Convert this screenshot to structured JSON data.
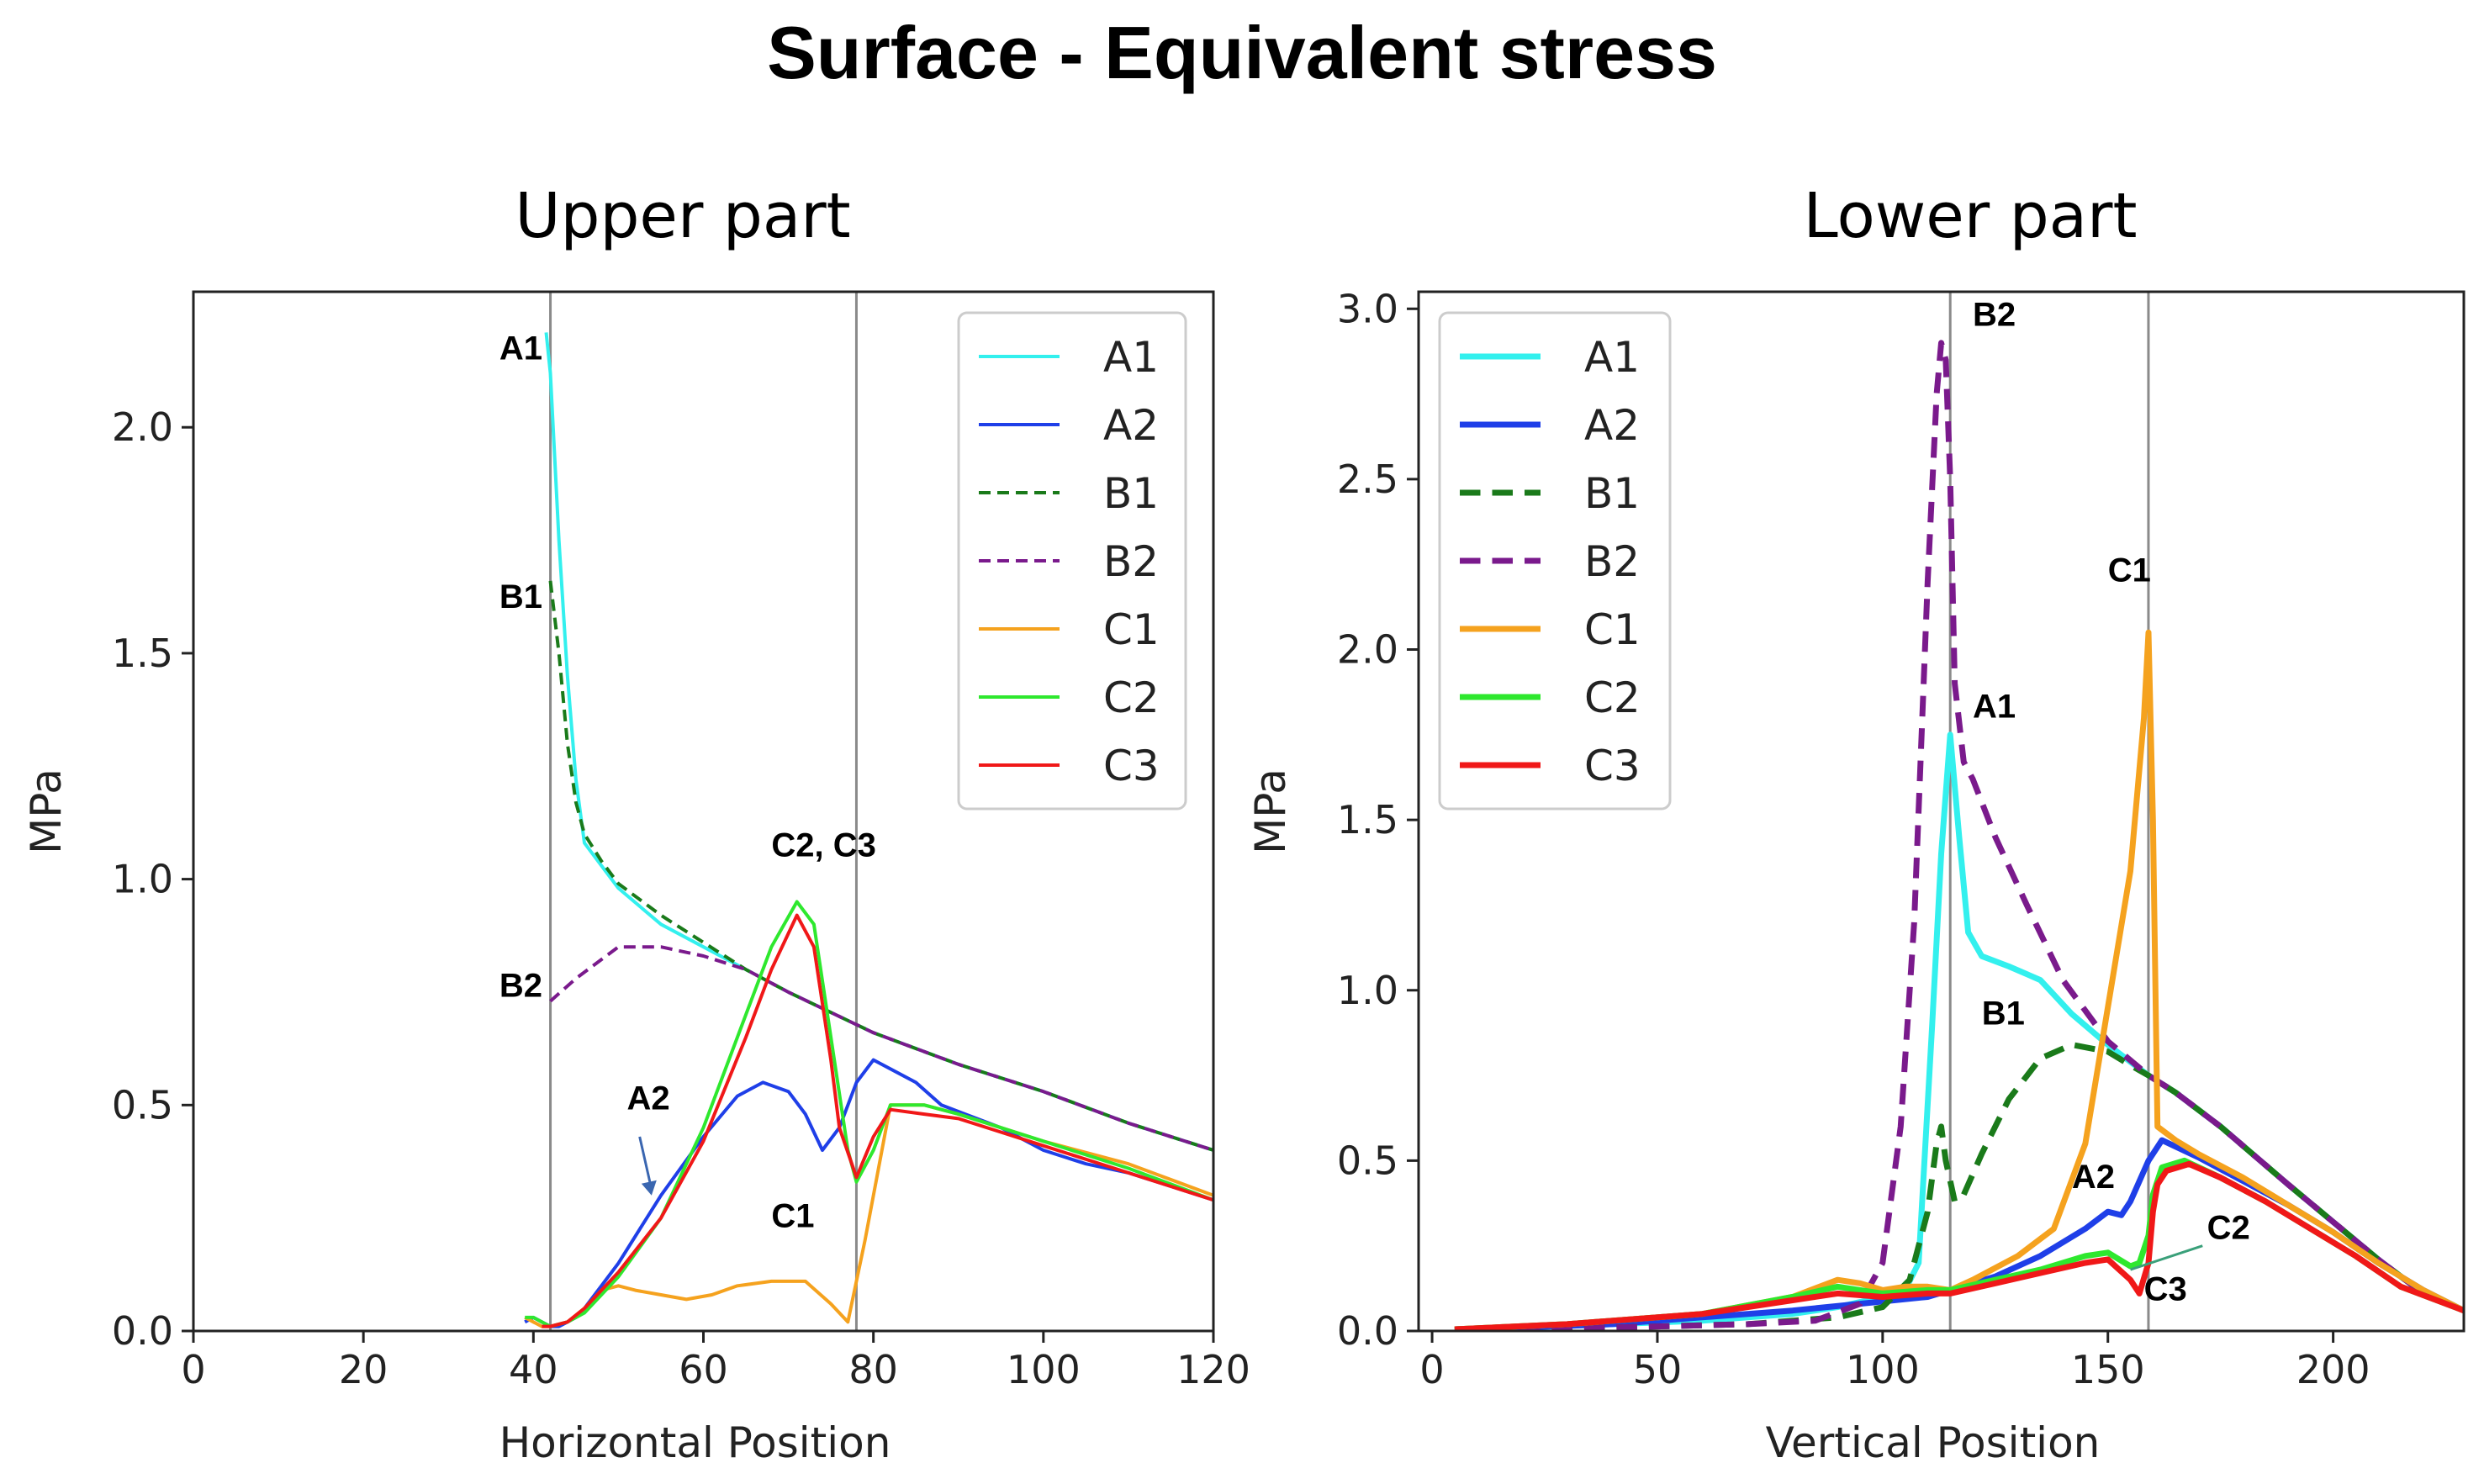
{
  "title": "Surface - Equivalent stress",
  "colors": {
    "A1": "#33f0ee",
    "A2": "#1f3fe8",
    "B1": "#1a7a1a",
    "B2": "#7a1a8c",
    "C1": "#f5a21e",
    "C2": "#2ee82e",
    "C3": "#f01818"
  },
  "chart_data": [
    {
      "type": "line",
      "title": "Upper part",
      "xlabel": "Horizontal Position",
      "ylabel": "MPa",
      "xlim": [
        0,
        120
      ],
      "ylim": [
        0,
        2.3
      ],
      "xticks": [
        0,
        20,
        40,
        60,
        80,
        100,
        120
      ],
      "yticks": [
        0.0,
        0.5,
        1.0,
        1.5,
        2.0
      ],
      "vlines": [
        42,
        78
      ],
      "legend": "top-right",
      "series": [
        {
          "name": "A1",
          "style": "solid",
          "x": [
            41.5,
            42,
            43,
            44,
            45,
            46,
            48,
            50,
            55,
            60,
            65,
            70,
            80,
            90,
            100,
            110,
            120
          ],
          "y": [
            2.21,
            2.12,
            1.75,
            1.45,
            1.22,
            1.08,
            1.03,
            0.98,
            0.9,
            0.85,
            0.8,
            0.75,
            0.66,
            0.59,
            0.53,
            0.46,
            0.4
          ]
        },
        {
          "name": "A2",
          "style": "solid",
          "x": [
            39,
            40,
            41,
            42,
            43,
            44,
            45,
            46,
            48,
            50,
            55,
            60,
            64,
            67,
            70,
            72,
            74,
            76,
            78,
            80,
            85,
            88,
            95,
            100,
            105,
            110,
            115,
            120
          ],
          "y": [
            0.02,
            0.03,
            0.02,
            0.01,
            0.01,
            0.02,
            0.03,
            0.05,
            0.1,
            0.15,
            0.3,
            0.43,
            0.52,
            0.55,
            0.53,
            0.48,
            0.4,
            0.45,
            0.55,
            0.6,
            0.55,
            0.5,
            0.45,
            0.4,
            0.37,
            0.35,
            0.32,
            0.29
          ]
        },
        {
          "name": "B1",
          "style": "dashed",
          "x": [
            42,
            43,
            44,
            45,
            46,
            48,
            50,
            55,
            60,
            65,
            70,
            80,
            90,
            100,
            110,
            120
          ],
          "y": [
            1.66,
            1.5,
            1.3,
            1.17,
            1.1,
            1.04,
            0.99,
            0.92,
            0.86,
            0.8,
            0.75,
            0.66,
            0.59,
            0.53,
            0.46,
            0.4
          ]
        },
        {
          "name": "B2",
          "style": "dashed",
          "x": [
            42,
            45,
            50,
            55,
            60,
            65,
            70,
            80,
            90,
            100,
            110,
            120
          ],
          "y": [
            0.73,
            0.78,
            0.85,
            0.85,
            0.83,
            0.8,
            0.75,
            0.66,
            0.59,
            0.53,
            0.46,
            0.4
          ]
        },
        {
          "name": "C1",
          "style": "solid",
          "x": [
            39,
            40,
            41,
            42,
            44,
            46,
            48,
            50,
            52,
            55,
            58,
            61,
            64,
            68,
            70,
            72,
            75,
            77,
            79,
            82,
            86,
            90,
            95,
            100,
            110,
            120
          ],
          "y": [
            0.03,
            0.02,
            0.01,
            0.01,
            0.02,
            0.05,
            0.09,
            0.1,
            0.09,
            0.08,
            0.07,
            0.08,
            0.1,
            0.11,
            0.11,
            0.11,
            0.06,
            0.02,
            0.2,
            0.5,
            0.5,
            0.48,
            0.45,
            0.42,
            0.37,
            0.3
          ]
        },
        {
          "name": "C2",
          "style": "solid",
          "x": [
            39,
            40,
            41,
            42,
            44,
            46,
            50,
            55,
            60,
            65,
            68,
            71,
            73,
            75,
            77,
            78,
            80,
            82,
            86,
            90,
            95,
            100,
            110,
            120
          ],
          "y": [
            0.03,
            0.03,
            0.02,
            0.01,
            0.02,
            0.04,
            0.12,
            0.25,
            0.45,
            0.7,
            0.85,
            0.95,
            0.9,
            0.65,
            0.4,
            0.33,
            0.4,
            0.5,
            0.5,
            0.48,
            0.45,
            0.42,
            0.36,
            0.29
          ]
        },
        {
          "name": "C3",
          "style": "solid",
          "x": [
            41,
            42,
            44,
            46,
            50,
            55,
            60,
            65,
            68,
            71,
            73,
            75,
            76,
            78,
            80,
            82,
            86,
            90,
            95,
            100,
            110,
            120
          ],
          "y": [
            0.01,
            0.01,
            0.02,
            0.05,
            0.13,
            0.25,
            0.42,
            0.65,
            0.8,
            0.92,
            0.85,
            0.6,
            0.45,
            0.34,
            0.43,
            0.49,
            0.48,
            0.47,
            0.44,
            0.41,
            0.35,
            0.29
          ]
        }
      ],
      "annotations": [
        {
          "text": "A1",
          "x": 36,
          "y": 2.15
        },
        {
          "text": "B1",
          "x": 36,
          "y": 1.6
        },
        {
          "text": "C2, C3",
          "x": 68,
          "y": 1.05
        },
        {
          "text": "B2",
          "x": 36,
          "y": 0.74
        },
        {
          "text": "A2",
          "x": 51,
          "y": 0.49
        },
        {
          "text": "C1",
          "x": 68,
          "y": 0.23
        }
      ]
    },
    {
      "type": "line",
      "title": "Lower part",
      "xlabel": "Vertical Position",
      "ylabel": "MPa",
      "xlim": [
        -3,
        229
      ],
      "ylim": [
        0,
        3.05
      ],
      "xticks": [
        0,
        50,
        100,
        150,
        200
      ],
      "yticks": [
        0.0,
        0.5,
        1.0,
        1.5,
        2.0,
        2.5,
        3.0
      ],
      "vlines": [
        115,
        159
      ],
      "legend": "top-left",
      "series": [
        {
          "name": "A1",
          "style": "solid",
          "x": [
            5,
            20,
            40,
            60,
            80,
            90,
            100,
            105,
            108,
            111,
            113,
            115,
            117,
            119,
            122,
            128,
            135,
            142,
            150,
            155,
            159,
            165,
            175,
            190,
            200,
            210,
            220,
            229
          ],
          "y": [
            0.005,
            0.01,
            0.02,
            0.03,
            0.05,
            0.07,
            0.1,
            0.12,
            0.2,
            0.9,
            1.4,
            1.75,
            1.45,
            1.17,
            1.1,
            1.07,
            1.03,
            0.93,
            0.84,
            0.79,
            0.75,
            0.7,
            0.6,
            0.43,
            0.32,
            0.21,
            0.11,
            0.06
          ]
        },
        {
          "name": "A2",
          "style": "solid",
          "x": [
            5,
            20,
            40,
            60,
            80,
            95,
            110,
            115,
            125,
            135,
            145,
            150,
            153,
            155,
            159,
            162,
            170,
            180,
            190,
            200,
            210,
            220,
            229
          ],
          "y": [
            0.005,
            0.01,
            0.02,
            0.04,
            0.06,
            0.08,
            0.1,
            0.12,
            0.16,
            0.22,
            0.3,
            0.35,
            0.34,
            0.38,
            0.5,
            0.56,
            0.51,
            0.44,
            0.37,
            0.29,
            0.2,
            0.12,
            0.06
          ]
        },
        {
          "name": "B1",
          "style": "dashed",
          "x": [
            5,
            40,
            70,
            90,
            100,
            106,
            110,
            112,
            113,
            114,
            116,
            118,
            122,
            128,
            135,
            142,
            150,
            155,
            159,
            165,
            175,
            190,
            200,
            210,
            220,
            229
          ],
          "y": [
            0.005,
            0.01,
            0.02,
            0.04,
            0.07,
            0.15,
            0.35,
            0.55,
            0.6,
            0.5,
            0.38,
            0.4,
            0.52,
            0.68,
            0.8,
            0.84,
            0.82,
            0.78,
            0.75,
            0.7,
            0.6,
            0.43,
            0.32,
            0.21,
            0.11,
            0.06
          ]
        },
        {
          "name": "B2",
          "style": "dashed",
          "x": [
            5,
            40,
            70,
            85,
            95,
            100,
            104,
            107,
            110,
            112,
            113,
            114,
            115,
            116,
            118,
            120,
            125,
            132,
            140,
            150,
            159,
            165,
            175,
            190,
            200,
            210,
            220,
            229
          ],
          "y": [
            0.005,
            0.01,
            0.02,
            0.03,
            0.08,
            0.2,
            0.6,
            1.2,
            2.2,
            2.75,
            2.9,
            2.85,
            2.5,
            1.9,
            1.67,
            1.62,
            1.45,
            1.25,
            1.03,
            0.85,
            0.75,
            0.7,
            0.6,
            0.43,
            0.32,
            0.21,
            0.11,
            0.06
          ]
        },
        {
          "name": "C1",
          "style": "solid",
          "x": [
            5,
            30,
            60,
            80,
            90,
            95,
            100,
            105,
            110,
            115,
            120,
            130,
            138,
            145,
            150,
            155,
            158,
            159,
            160,
            161,
            165,
            170,
            180,
            190,
            200,
            210,
            220,
            229
          ],
          "y": [
            0.005,
            0.02,
            0.05,
            0.1,
            0.15,
            0.14,
            0.12,
            0.13,
            0.13,
            0.12,
            0.15,
            0.22,
            0.3,
            0.55,
            0.95,
            1.35,
            1.8,
            2.05,
            1.5,
            0.6,
            0.56,
            0.52,
            0.45,
            0.37,
            0.29,
            0.2,
            0.12,
            0.06
          ]
        },
        {
          "name": "C2",
          "style": "solid",
          "x": [
            5,
            30,
            60,
            80,
            90,
            95,
            100,
            110,
            115,
            125,
            135,
            145,
            150,
            155,
            157,
            159,
            160,
            162,
            167,
            175,
            185,
            195,
            205,
            215,
            229
          ],
          "y": [
            0.005,
            0.02,
            0.05,
            0.1,
            0.13,
            0.12,
            0.11,
            0.12,
            0.12,
            0.15,
            0.18,
            0.22,
            0.23,
            0.19,
            0.2,
            0.28,
            0.4,
            0.48,
            0.5,
            0.45,
            0.38,
            0.3,
            0.22,
            0.13,
            0.06
          ]
        },
        {
          "name": "C3",
          "style": "solid",
          "x": [
            5,
            30,
            60,
            80,
            90,
            100,
            110,
            115,
            125,
            135,
            145,
            150,
            155,
            157,
            159,
            160,
            161,
            163,
            168,
            175,
            185,
            195,
            205,
            215,
            229
          ],
          "y": [
            0.005,
            0.02,
            0.05,
            0.09,
            0.11,
            0.1,
            0.11,
            0.11,
            0.14,
            0.17,
            0.2,
            0.21,
            0.15,
            0.11,
            0.2,
            0.35,
            0.43,
            0.47,
            0.49,
            0.45,
            0.38,
            0.3,
            0.22,
            0.13,
            0.06
          ]
        }
      ],
      "annotations": [
        {
          "text": "B2",
          "x": 120,
          "y": 2.95
        },
        {
          "text": "C1",
          "x": 150,
          "y": 2.2
        },
        {
          "text": "A1",
          "x": 120,
          "y": 1.8
        },
        {
          "text": "B1",
          "x": 122,
          "y": 0.9
        },
        {
          "text": "A2",
          "x": 142,
          "y": 0.42
        },
        {
          "text": "C2",
          "x": 172,
          "y": 0.27
        },
        {
          "text": "C3",
          "x": 158,
          "y": 0.09
        }
      ]
    }
  ]
}
